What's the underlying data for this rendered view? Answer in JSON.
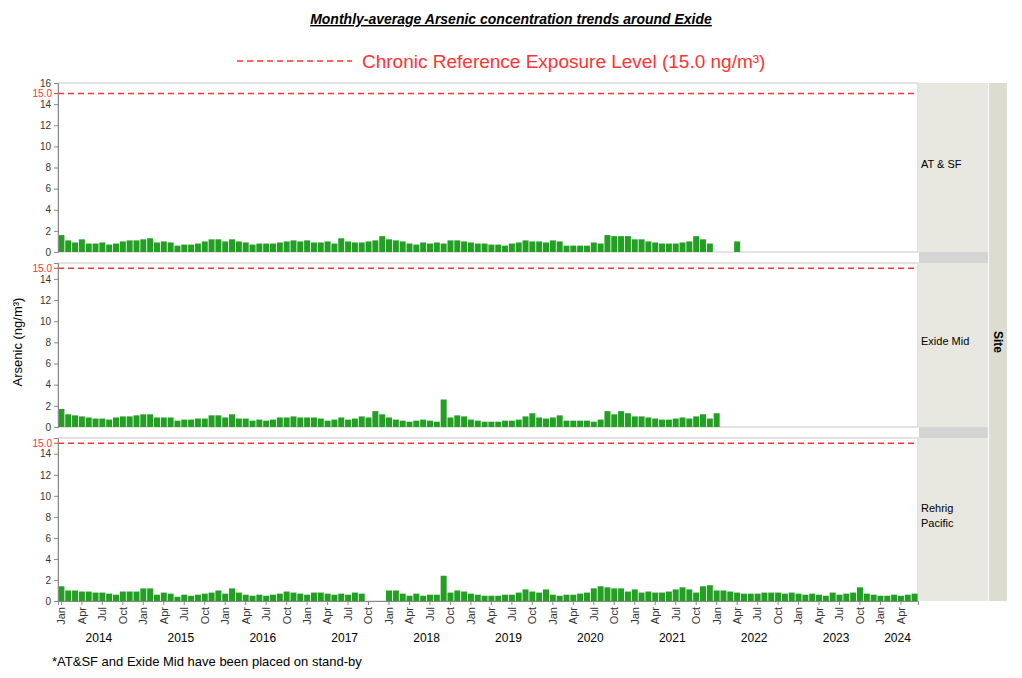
{
  "title": "Monthly-average Arsenic concentration trends around Exide",
  "legend_label": "Chronic Reference Exposure Level (15.0 ng/m³)",
  "y_label": "Arsenic (ng/m³)",
  "facet_label": "Site",
  "footnote": "*AT&SF and Exide Mid have been placed on stand-by",
  "years": [
    "2014",
    "2015",
    "2016",
    "2017",
    "2018",
    "2019",
    "2020",
    "2021",
    "2022",
    "2023",
    "2024"
  ],
  "chart_data": [
    {
      "type": "bar",
      "title": "AT & SF",
      "color": "#23a023",
      "tick_labels": "y",
      "ylim": [
        0,
        16
      ],
      "yticks": [
        0,
        2,
        4,
        6,
        8,
        10,
        12,
        14,
        16
      ],
      "reference_line": {
        "value": 15,
        "label": "15.0",
        "color": "#ff3333"
      },
      "categories": [
        "Jan",
        null,
        null,
        "Apr",
        null,
        null,
        "Jul",
        null,
        null,
        "Oct",
        null,
        null,
        "Jan",
        null,
        null,
        "Apr",
        null,
        null,
        "Jul",
        null,
        null,
        "Oct",
        null,
        null,
        "Jan",
        null,
        null,
        "Apr",
        null,
        null,
        "Jul",
        null,
        null,
        "Oct",
        null,
        null,
        "Jan",
        null,
        null,
        "Apr",
        null,
        null,
        "Jul",
        null,
        null,
        "Oct",
        null,
        null,
        "Jan",
        null,
        null,
        "Apr",
        null,
        null,
        "Jul",
        null,
        null,
        "Oct",
        null,
        null,
        "Jan",
        null,
        null,
        "Apr",
        null,
        null,
        "Jul",
        null,
        null,
        "Oct",
        null,
        null,
        "Jan",
        null,
        null,
        "Apr",
        null,
        null,
        "Jul",
        null,
        null,
        "Oct",
        null,
        null,
        "Jan",
        null,
        null,
        "Apr",
        null,
        null,
        "Jul",
        null,
        null,
        "Oct",
        null,
        null,
        "Jan",
        null,
        null,
        "Apr",
        null,
        null,
        "Jul",
        null,
        null,
        "Oct",
        null,
        null,
        "Jan",
        null,
        null,
        "Apr",
        null,
        null,
        "Jul",
        null,
        null,
        "Oct",
        null,
        null,
        "Jan",
        null,
        null,
        "Apr",
        null,
        null
      ],
      "values": [
        1.6,
        1.1,
        0.9,
        1.2,
        0.8,
        0.8,
        0.9,
        0.7,
        0.8,
        1.0,
        1.1,
        1.1,
        1.2,
        1.3,
        0.9,
        1.0,
        0.9,
        0.6,
        0.7,
        0.7,
        0.8,
        1.0,
        1.2,
        1.2,
        1.0,
        1.2,
        1.0,
        0.9,
        0.7,
        0.8,
        0.8,
        0.8,
        0.9,
        1.0,
        1.1,
        1.0,
        1.1,
        0.9,
        0.9,
        1.0,
        0.8,
        1.3,
        1.0,
        0.9,
        0.9,
        1.0,
        1.1,
        1.5,
        1.2,
        1.1,
        1.0,
        0.8,
        0.7,
        0.9,
        0.8,
        0.9,
        0.8,
        1.1,
        1.1,
        1.0,
        0.9,
        0.8,
        0.8,
        0.7,
        0.7,
        0.6,
        0.8,
        0.9,
        1.1,
        1.0,
        1.0,
        0.9,
        1.1,
        1.0,
        0.6,
        0.6,
        0.6,
        0.6,
        0.9,
        0.8,
        1.6,
        1.5,
        1.5,
        1.5,
        1.2,
        1.2,
        1.0,
        0.9,
        0.8,
        0.8,
        0.8,
        0.9,
        1.0,
        1.5,
        1.2,
        0.8,
        null,
        null,
        null,
        1.0,
        null,
        null,
        null,
        null,
        null,
        null,
        null,
        null,
        null,
        null,
        null,
        null,
        null,
        null,
        null,
        null,
        null,
        null,
        null,
        null,
        null,
        null,
        null,
        null,
        null,
        null
      ]
    },
    {
      "type": "bar",
      "title": "Exide Mid",
      "color": "#23a023",
      "tick_labels": "y",
      "ylim": [
        0,
        15.5
      ],
      "yticks": [
        0,
        2,
        4,
        6,
        8,
        10,
        12,
        14
      ],
      "reference_line": {
        "value": 15,
        "label": "15.0",
        "color": "#ff3333"
      },
      "categories": [
        "Jan",
        null,
        null,
        "Apr",
        null,
        null,
        "Jul",
        null,
        null,
        "Oct",
        null,
        null,
        "Jan",
        null,
        null,
        "Apr",
        null,
        null,
        "Jul",
        null,
        null,
        "Oct",
        null,
        null,
        "Jan",
        null,
        null,
        "Apr",
        null,
        null,
        "Jul",
        null,
        null,
        "Oct",
        null,
        null,
        "Jan",
        null,
        null,
        "Apr",
        null,
        null,
        "Jul",
        null,
        null,
        "Oct",
        null,
        null,
        "Jan",
        null,
        null,
        "Apr",
        null,
        null,
        "Jul",
        null,
        null,
        "Oct",
        null,
        null,
        "Jan",
        null,
        null,
        "Apr",
        null,
        null,
        "Jul",
        null,
        null,
        "Oct",
        null,
        null,
        "Jan",
        null,
        null,
        "Apr",
        null,
        null,
        "Jul",
        null,
        null,
        "Oct",
        null,
        null,
        "Jan",
        null,
        null,
        "Apr",
        null,
        null,
        "Jul",
        null,
        null,
        "Oct",
        null,
        null,
        "Jan",
        null,
        null,
        "Apr",
        null,
        null,
        "Jul",
        null,
        null,
        "Oct",
        null,
        null,
        "Jan",
        null,
        null,
        "Apr",
        null,
        null,
        "Jul",
        null,
        null,
        "Oct",
        null,
        null,
        "Jan",
        null,
        null,
        "Apr",
        null,
        null
      ],
      "values": [
        1.7,
        1.2,
        1.1,
        1.0,
        0.9,
        0.8,
        0.8,
        0.7,
        0.9,
        1.0,
        1.0,
        1.1,
        1.2,
        1.2,
        0.9,
        0.9,
        0.9,
        0.6,
        0.7,
        0.7,
        0.8,
        0.8,
        1.1,
        1.1,
        0.9,
        1.2,
        0.8,
        0.8,
        0.6,
        0.7,
        0.6,
        0.7,
        0.9,
        0.9,
        1.0,
        0.9,
        0.9,
        0.9,
        0.8,
        0.6,
        0.7,
        0.9,
        0.7,
        0.8,
        1.0,
        0.9,
        1.5,
        1.2,
        0.9,
        0.7,
        0.6,
        0.5,
        0.6,
        0.7,
        0.6,
        0.5,
        2.6,
        0.9,
        1.1,
        1.0,
        0.7,
        0.6,
        0.5,
        0.5,
        0.5,
        0.6,
        0.6,
        0.7,
        1.0,
        1.3,
        0.9,
        0.8,
        0.9,
        1.1,
        0.6,
        0.6,
        0.6,
        0.6,
        0.5,
        0.7,
        1.5,
        1.2,
        1.5,
        1.3,
        1.0,
        1.0,
        0.9,
        0.8,
        0.7,
        0.7,
        0.8,
        0.9,
        0.8,
        1.0,
        1.2,
        0.8,
        1.3,
        null,
        null,
        null,
        null,
        null,
        null,
        null,
        null,
        null,
        null,
        null,
        null,
        null,
        null,
        null,
        null,
        null,
        null,
        null,
        null,
        null,
        null,
        null,
        null,
        null,
        null,
        null,
        null,
        null
      ]
    },
    {
      "type": "bar",
      "title": "Rehrig Pacific",
      "color": "#23a023",
      "ylim": [
        0,
        15.5
      ],
      "yticks": [
        0,
        2,
        4,
        6,
        8,
        10,
        12,
        14
      ],
      "reference_line": {
        "value": 15,
        "label": "15.0",
        "color": "#ff3333"
      },
      "categories": [
        "Jan",
        null,
        null,
        "Apr",
        null,
        null,
        "Jul",
        null,
        null,
        "Oct",
        null,
        null,
        "Jan",
        null,
        null,
        "Apr",
        null,
        null,
        "Jul",
        null,
        null,
        "Oct",
        null,
        null,
        "Jan",
        null,
        null,
        "Apr",
        null,
        null,
        "Jul",
        null,
        null,
        "Oct",
        null,
        null,
        "Jan",
        null,
        null,
        "Apr",
        null,
        null,
        "Jul",
        null,
        null,
        "Oct",
        null,
        null,
        "Jan",
        null,
        null,
        "Apr",
        null,
        null,
        "Jul",
        null,
        null,
        "Oct",
        null,
        null,
        "Jan",
        null,
        null,
        "Apr",
        null,
        null,
        "Jul",
        null,
        null,
        "Oct",
        null,
        null,
        "Jan",
        null,
        null,
        "Apr",
        null,
        null,
        "Jul",
        null,
        null,
        "Oct",
        null,
        null,
        "Jan",
        null,
        null,
        "Apr",
        null,
        null,
        "Jul",
        null,
        null,
        "Oct",
        null,
        null,
        "Jan",
        null,
        null,
        "Apr",
        null,
        null,
        "Jul",
        null,
        null,
        "Oct",
        null,
        null,
        "Jan",
        null,
        null,
        "Apr",
        null,
        null,
        "Jul",
        null,
        null,
        "Oct",
        null,
        null,
        "Jan",
        null,
        null,
        "Apr",
        null,
        null
      ],
      "values": [
        1.4,
        1.0,
        1.0,
        0.9,
        0.9,
        0.8,
        0.8,
        0.7,
        0.6,
        0.9,
        0.9,
        0.9,
        1.2,
        1.2,
        0.6,
        0.8,
        0.7,
        0.4,
        0.6,
        0.5,
        0.6,
        0.7,
        0.8,
        1.0,
        0.7,
        1.2,
        0.8,
        0.6,
        0.5,
        0.6,
        0.5,
        0.6,
        0.7,
        0.9,
        0.8,
        0.7,
        0.6,
        0.8,
        0.8,
        0.7,
        0.6,
        0.7,
        0.6,
        0.8,
        0.7,
        null,
        null,
        null,
        1.0,
        1.0,
        0.7,
        0.5,
        0.7,
        0.5,
        0.6,
        0.6,
        2.4,
        0.8,
        1.0,
        0.9,
        0.7,
        0.6,
        0.5,
        0.5,
        0.5,
        0.6,
        0.6,
        0.8,
        1.1,
        0.9,
        0.8,
        1.1,
        0.6,
        0.5,
        0.6,
        0.6,
        0.7,
        0.8,
        1.2,
        1.4,
        1.3,
        1.2,
        1.2,
        0.9,
        1.1,
        0.8,
        0.9,
        0.8,
        0.8,
        0.9,
        1.1,
        1.3,
        1.1,
        0.8,
        1.4,
        1.5,
        1.0,
        1.0,
        0.9,
        0.8,
        0.7,
        0.7,
        0.7,
        0.8,
        0.8,
        0.8,
        0.7,
        0.8,
        0.7,
        0.6,
        0.7,
        0.6,
        0.5,
        0.8,
        0.6,
        0.7,
        0.8,
        1.3,
        0.7,
        0.6,
        0.5,
        0.5,
        0.6,
        0.5,
        0.6,
        0.7
      ]
    }
  ]
}
